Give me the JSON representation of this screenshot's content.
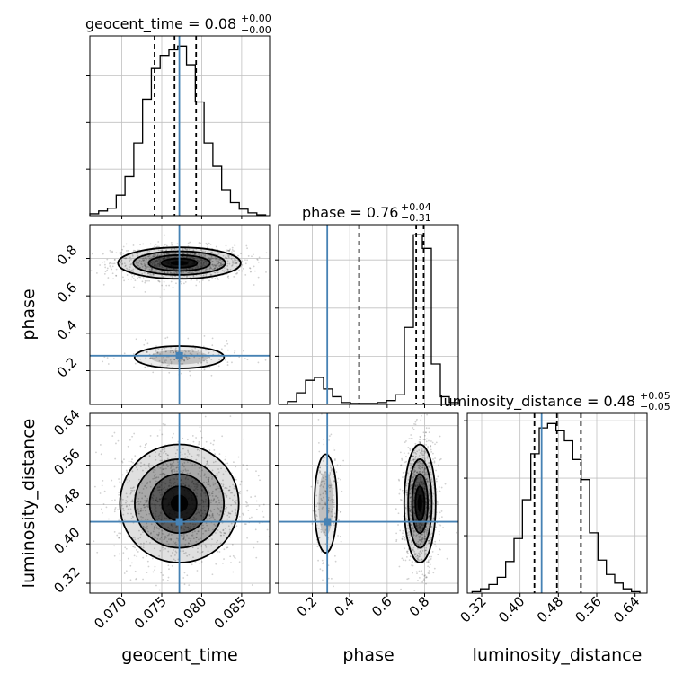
{
  "chart_data": {
    "type": "corner",
    "parameters": [
      "geocent_time",
      "phase",
      "luminosity_distance"
    ],
    "truth": {
      "geocent_time": 0.0772,
      "phase": 0.28,
      "luminosity_distance": 0.445
    },
    "colors": {
      "truth": "#4682b4",
      "hist": "#000000",
      "grid": "#c0c0c0",
      "quantile": "#000000"
    },
    "diagonal": [
      {
        "param": "geocent_time",
        "title_main": "geocent_time = 0.08",
        "title_sup": "+0.00",
        "title_sub": "−0.00",
        "xlim": [
          0.066,
          0.0885
        ],
        "quantiles": [
          0.0741,
          0.0766,
          0.0793
        ],
        "bin_edges": [
          0.066,
          0.0671,
          0.0682,
          0.0693,
          0.0704,
          0.0715,
          0.0726,
          0.0737,
          0.0748,
          0.0759,
          0.077,
          0.0781,
          0.0792,
          0.0803,
          0.0814,
          0.0825,
          0.0836,
          0.0847,
          0.0858,
          0.0869,
          0.088
        ],
        "counts": [
          2,
          5,
          8,
          22,
          42,
          78,
          125,
          158,
          172,
          178,
          182,
          162,
          122,
          78,
          53,
          28,
          14,
          7,
          3,
          1
        ],
        "count_ticks": [
          50,
          100,
          150
        ]
      },
      {
        "param": "phase",
        "title_main": "phase = 0.76",
        "title_sup": "+0.04",
        "title_sub": "−0.31",
        "xlim": [
          0.02,
          0.98
        ],
        "quantiles": [
          0.45,
          0.755,
          0.795
        ],
        "bin_edges": [
          0.02,
          0.068,
          0.116,
          0.164,
          0.212,
          0.26,
          0.308,
          0.356,
          0.404,
          0.452,
          0.5,
          0.548,
          0.596,
          0.644,
          0.692,
          0.74,
          0.788,
          0.836,
          0.884,
          0.932,
          0.98
        ],
        "counts": [
          0,
          3,
          12,
          25,
          28,
          16,
          8,
          2,
          1,
          1,
          1,
          2,
          4,
          10,
          80,
          176,
          162,
          42,
          8,
          2
        ],
        "count_ticks": [
          50,
          100,
          150
        ]
      },
      {
        "param": "luminosity_distance",
        "title_main": "luminosity_distance = 0.48",
        "title_sup": "+0.05",
        "title_sub": "−0.05",
        "xlim": [
          0.29,
          0.665
        ],
        "quantiles": [
          0.43,
          0.477,
          0.527
        ],
        "bin_edges": [
          0.3,
          0.3175,
          0.335,
          0.3525,
          0.37,
          0.3875,
          0.405,
          0.4225,
          0.44,
          0.4575,
          0.475,
          0.4925,
          0.51,
          0.5275,
          0.545,
          0.5625,
          0.58,
          0.5975,
          0.615,
          0.6325,
          0.65
        ],
        "counts": [
          1,
          3,
          6,
          11,
          22,
          38,
          65,
          97,
          115,
          118,
          113,
          106,
          93,
          79,
          42,
          23,
          13,
          7,
          3,
          1
        ],
        "count_ticks": [
          40,
          80,
          120
        ]
      }
    ],
    "axes": {
      "geocent_time": {
        "ticks": [
          0.07,
          0.075,
          0.08,
          0.085
        ],
        "tick_labels": [
          "0.070",
          "0.075",
          "0.080",
          "0.085"
        ],
        "label": "geocent_time"
      },
      "phase": {
        "ticks": [
          0.2,
          0.4,
          0.6,
          0.8
        ],
        "tick_labels": [
          "0.2",
          "0.4",
          "0.6",
          "0.8"
        ],
        "label": "phase"
      },
      "luminosity_distance": {
        "ticks": [
          0.32,
          0.4,
          0.48,
          0.56,
          0.64
        ],
        "tick_labels": [
          "0.32",
          "0.40",
          "0.48",
          "0.56",
          "0.64"
        ],
        "label": "luminosity_distance"
      }
    },
    "scatter_params": {
      "phase_vs_geocent_time": {
        "modes": [
          {
            "x": 0.0772,
            "y": 0.775,
            "sx": 0.0032,
            "sy": 0.035,
            "weight": 0.86
          },
          {
            "x": 0.0772,
            "y": 0.272,
            "sx": 0.0028,
            "sy": 0.03,
            "weight": 0.14
          }
        ]
      },
      "luminosity_distance_vs_geocent_time": {
        "modes": [
          {
            "x": 0.0772,
            "y": 0.482,
            "sx": 0.0031,
            "sy": 0.05,
            "weight": 1.0
          }
        ]
      },
      "luminosity_distance_vs_phase": {
        "modes": [
          {
            "x": 0.775,
            "y": 0.482,
            "sx": 0.035,
            "sy": 0.05,
            "weight": 0.86
          },
          {
            "x": 0.272,
            "y": 0.482,
            "sx": 0.03,
            "sy": 0.05,
            "weight": 0.14
          }
        ]
      }
    }
  }
}
